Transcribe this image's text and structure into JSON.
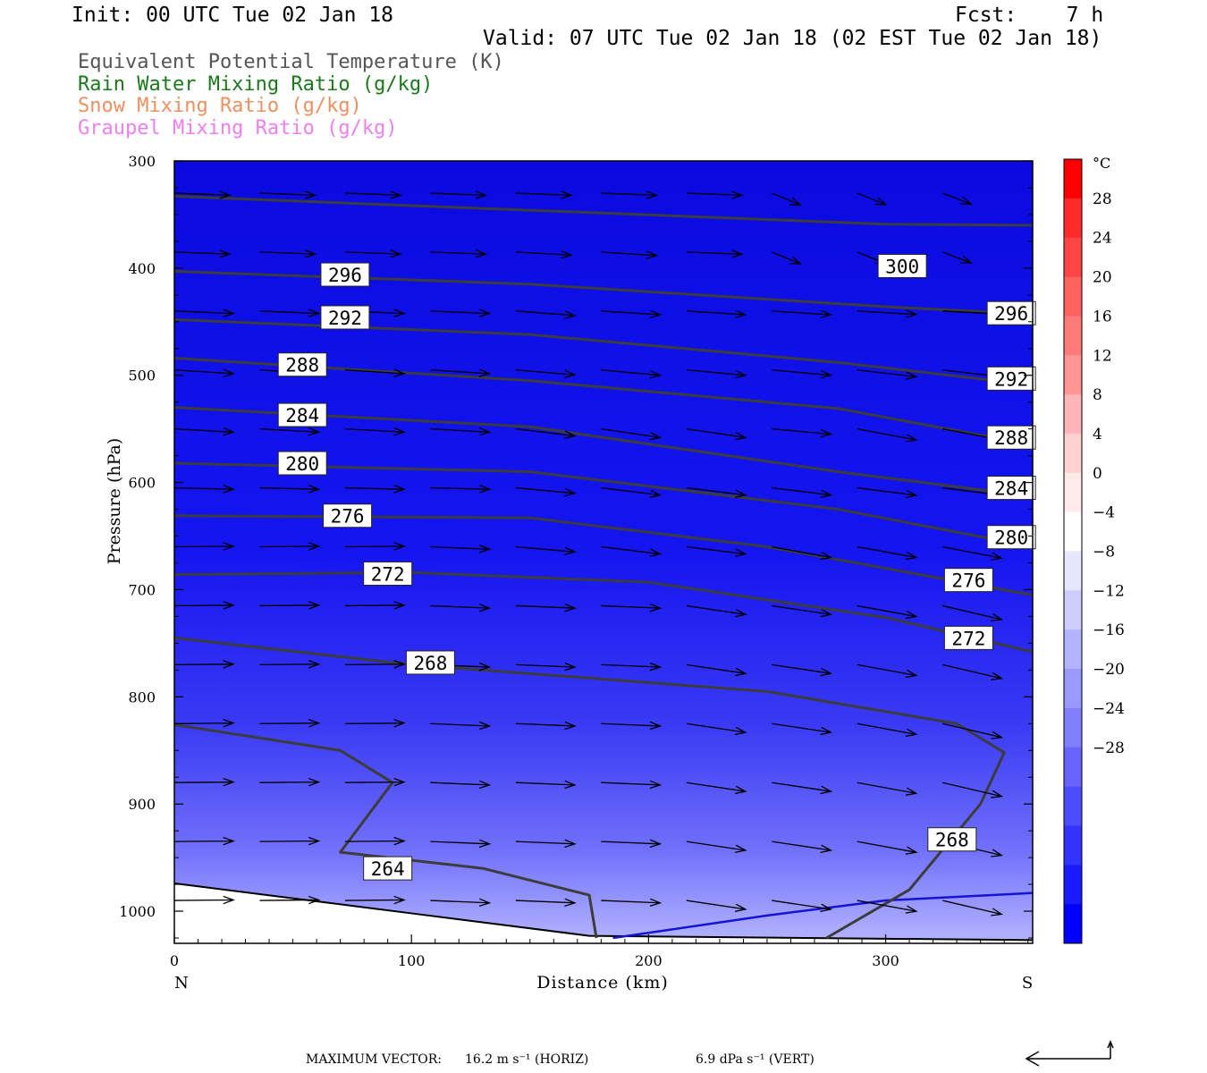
{
  "header": {
    "init": "Init: 00 UTC Tue 02 Jan 18",
    "fcst": "Fcst:    7 h",
    "valid": "Valid: 07 UTC Tue 02 Jan 18 (02 EST Tue 02 Jan 18)"
  },
  "fields": [
    {
      "label": "Equivalent Potential Temperature (K)",
      "color": "#555555"
    },
    {
      "label": "Rain Water Mixing Ratio (g/kg)",
      "color": "#1a7a1a"
    },
    {
      "label": "Snow Mixing Ratio (g/kg)",
      "color": "#ee9060"
    },
    {
      "label": "Graupel Mixing Ratio (g/kg)",
      "color": "#ee80ee"
    }
  ],
  "chart_data": {
    "type": "cross-section",
    "xlabel": "Distance (km)",
    "ylabel": "Pressure (hPa)",
    "x_ticks": [
      0,
      100,
      200,
      300
    ],
    "x_range": [
      0,
      362
    ],
    "y_ticks": [
      300,
      400,
      500,
      600,
      700,
      800,
      900,
      1000
    ],
    "y_range": [
      300,
      1030
    ],
    "y_axis": "pressure (increasing downward)",
    "left_end": "N",
    "right_end": "S",
    "colorbar": {
      "unit": "°C",
      "ticks": [
        28,
        24,
        20,
        16,
        12,
        8,
        4,
        0,
        -4,
        -8,
        -12,
        -16,
        -20,
        -24,
        -28
      ],
      "colors": [
        "#ff0000",
        "#ff2a2a",
        "#ff4545",
        "#ff6060",
        "#ff7a7a",
        "#ff9595",
        "#ffb5b5",
        "#ffd0d0",
        "#ffeaea",
        "#ffffff",
        "#e6e6ff",
        "#ccccff",
        "#b3b3ff",
        "#9999ff",
        "#8080ff",
        "#6666ff",
        "#4d4dff",
        "#3333ff",
        "#1a1aff",
        "#0000ff"
      ]
    },
    "theta_e_contours": [
      {
        "value": 300,
        "points": [
          [
            0,
            333
          ],
          [
            150,
            346
          ],
          [
            300,
            359
          ],
          [
            362,
            360
          ]
        ]
      },
      {
        "value": 296,
        "points": [
          [
            0,
            403
          ],
          [
            150,
            415
          ],
          [
            300,
            436
          ],
          [
            362,
            443
          ]
        ]
      },
      {
        "value": 292,
        "points": [
          [
            0,
            448
          ],
          [
            150,
            462
          ],
          [
            280,
            488
          ],
          [
            362,
            509
          ]
        ]
      },
      {
        "value": 288,
        "points": [
          [
            0,
            484
          ],
          [
            150,
            505
          ],
          [
            280,
            531
          ],
          [
            362,
            565
          ]
        ]
      },
      {
        "value": 284,
        "points": [
          [
            0,
            530
          ],
          [
            150,
            548
          ],
          [
            280,
            590
          ],
          [
            362,
            613
          ]
        ]
      },
      {
        "value": 280,
        "points": [
          [
            0,
            582
          ],
          [
            150,
            590
          ],
          [
            280,
            625
          ],
          [
            362,
            660
          ]
        ]
      },
      {
        "value": 276,
        "points": [
          [
            0,
            631
          ],
          [
            150,
            633
          ],
          [
            250,
            660
          ],
          [
            362,
            705
          ]
        ]
      },
      {
        "value": 272,
        "points": [
          [
            0,
            686
          ],
          [
            100,
            684
          ],
          [
            200,
            693
          ],
          [
            300,
            726
          ],
          [
            362,
            758
          ]
        ]
      },
      {
        "value": 268,
        "points": [
          [
            0,
            745
          ],
          [
            100,
            770
          ],
          [
            250,
            795
          ],
          [
            330,
            825
          ],
          [
            350,
            852
          ],
          [
            340,
            900
          ],
          [
            310,
            980
          ],
          [
            275,
            1025
          ]
        ]
      },
      {
        "value": 264,
        "points": [
          [
            0,
            826
          ],
          [
            70,
            850
          ],
          [
            92,
            880
          ],
          [
            70,
            945
          ],
          [
            130,
            960
          ],
          [
            175,
            985
          ],
          [
            178,
            1025
          ]
        ]
      }
    ],
    "contour_labels": [
      {
        "value": "300",
        "x": 307,
        "p": 398
      },
      {
        "value": "296",
        "x": 72,
        "p": 406
      },
      {
        "value": "296",
        "x": 353,
        "p": 442
      },
      {
        "value": "292",
        "x": 72,
        "p": 446
      },
      {
        "value": "292",
        "x": 353,
        "p": 503
      },
      {
        "value": "288",
        "x": 54,
        "p": 490
      },
      {
        "value": "288",
        "x": 353,
        "p": 558
      },
      {
        "value": "284",
        "x": 54,
        "p": 537
      },
      {
        "value": "284",
        "x": 353,
        "p": 605
      },
      {
        "value": "280",
        "x": 54,
        "p": 582
      },
      {
        "value": "280",
        "x": 353,
        "p": 651
      },
      {
        "value": "276",
        "x": 73,
        "p": 631
      },
      {
        "value": "276",
        "x": 335,
        "p": 691
      },
      {
        "value": "272",
        "x": 90,
        "p": 685
      },
      {
        "value": "272",
        "x": 335,
        "p": 745
      },
      {
        "value": "268",
        "x": 108,
        "p": 768
      },
      {
        "value": "268",
        "x": 328,
        "p": 933
      },
      {
        "value": "264",
        "x": 90,
        "p": 960
      }
    ],
    "freezing_level": [
      [
        185,
        1025
      ],
      [
        250,
        1004
      ],
      [
        300,
        990
      ],
      [
        362,
        983
      ]
    ],
    "terrain_surface": [
      [
        0,
        974
      ],
      [
        100,
        1002
      ],
      [
        175,
        1023
      ],
      [
        362,
        1027
      ]
    ]
  },
  "footer": {
    "max_vector_label": "MAXIMUM VECTOR:",
    "horiz": "16.2 m s⁻¹ (HORIZ)",
    "vert": "6.9 dPa s⁻¹ (VERT)"
  }
}
